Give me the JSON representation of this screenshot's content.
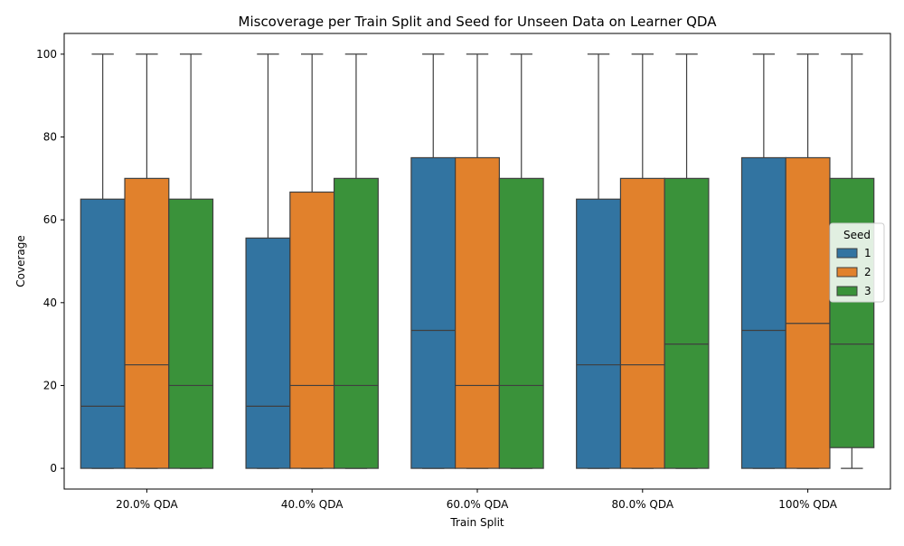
{
  "chart_data": {
    "type": "box",
    "title": "Miscoverage per Train Split and Seed for Unseen Data on Learner QDA",
    "xlabel": "Train Split",
    "ylabel": "Coverage",
    "ylim": [
      -5,
      105
    ],
    "yticks": [
      0,
      20,
      40,
      60,
      80,
      100
    ],
    "grid": false,
    "categories": [
      "20.0% QDA",
      "40.0% QDA",
      "60.0% QDA",
      "80.0% QDA",
      "100% QDA"
    ],
    "legend": {
      "title": "Seed",
      "placement": "center-right"
    },
    "series": [
      {
        "name": "1",
        "color": "#3274a1",
        "boxes": [
          {
            "whislo": 0,
            "q1": 0,
            "med": 15,
            "q3": 65,
            "whishi": 100
          },
          {
            "whislo": 0,
            "q1": 0,
            "med": 15,
            "q3": 55.6,
            "whishi": 100
          },
          {
            "whislo": 0,
            "q1": 0,
            "med": 33.3,
            "q3": 75,
            "whishi": 100
          },
          {
            "whislo": 0,
            "q1": 0,
            "med": 25,
            "q3": 65,
            "whishi": 100
          },
          {
            "whislo": 0,
            "q1": 0,
            "med": 33.3,
            "q3": 75,
            "whishi": 100
          }
        ]
      },
      {
        "name": "2",
        "color": "#e1812c",
        "boxes": [
          {
            "whislo": 0,
            "q1": 0,
            "med": 25,
            "q3": 70,
            "whishi": 100
          },
          {
            "whislo": 0,
            "q1": 0,
            "med": 20,
            "q3": 66.7,
            "whishi": 100
          },
          {
            "whislo": 0,
            "q1": 0,
            "med": 20,
            "q3": 75,
            "whishi": 100
          },
          {
            "whislo": 0,
            "q1": 0,
            "med": 25,
            "q3": 70,
            "whishi": 100
          },
          {
            "whislo": 0,
            "q1": 0,
            "med": 35,
            "q3": 75,
            "whishi": 100
          }
        ]
      },
      {
        "name": "3",
        "color": "#3a923a",
        "boxes": [
          {
            "whislo": 0,
            "q1": 0,
            "med": 20,
            "q3": 65,
            "whishi": 100
          },
          {
            "whislo": 0,
            "q1": 0,
            "med": 20,
            "q3": 70,
            "whishi": 100
          },
          {
            "whislo": 0,
            "q1": 0,
            "med": 20,
            "q3": 70,
            "whishi": 100
          },
          {
            "whislo": 0,
            "q1": 0,
            "med": 30,
            "q3": 70,
            "whishi": 100
          },
          {
            "whislo": 0,
            "q1": 5,
            "med": 30,
            "q3": 70,
            "whishi": 100
          }
        ]
      }
    ]
  }
}
